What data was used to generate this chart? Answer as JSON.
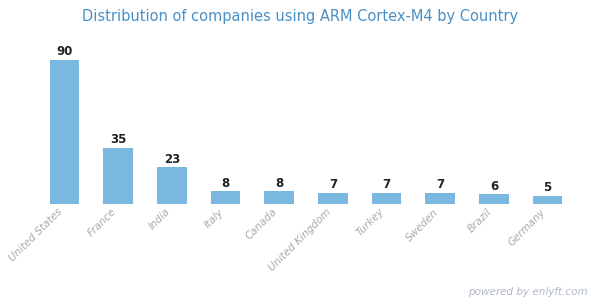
{
  "title": "Distribution of companies using ARM Cortex-M4 by Country",
  "categories": [
    "United States",
    "France",
    "India",
    "Italy",
    "Canada",
    "United Kingdom",
    "Turkey",
    "Sweden",
    "Brazil",
    "Germany"
  ],
  "values": [
    90,
    35,
    23,
    8,
    8,
    7,
    7,
    7,
    6,
    5
  ],
  "bar_color": "#7ab8e0",
  "title_color": "#4a90c4",
  "label_color": "#222222",
  "label_fontsize": 8.5,
  "title_fontsize": 10.5,
  "tick_fontsize": 7.5,
  "tick_color": "#aaaaaa",
  "watermark": "powered by enlyft.com",
  "watermark_color": "#b0b8c8",
  "background_color": "#ffffff",
  "ylim": [
    0,
    105
  ]
}
